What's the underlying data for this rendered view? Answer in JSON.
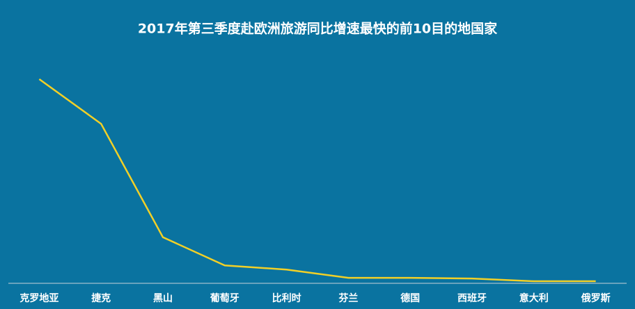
{
  "chart_data": {
    "type": "line",
    "title": "2017年第三季度赴欧洲旅游同比增速最快的前10目的地国家",
    "categories": [
      "克罗地亚",
      "捷克",
      "黑山",
      "葡萄牙",
      "比利时",
      "芬兰",
      "德国",
      "西班牙",
      "意大利",
      "俄罗斯"
    ],
    "values": [
      297,
      232,
      67,
      26,
      20,
      8,
      8,
      7,
      3,
      3
    ],
    "color": "#f2d027",
    "ylim": [
      0,
      300
    ]
  }
}
